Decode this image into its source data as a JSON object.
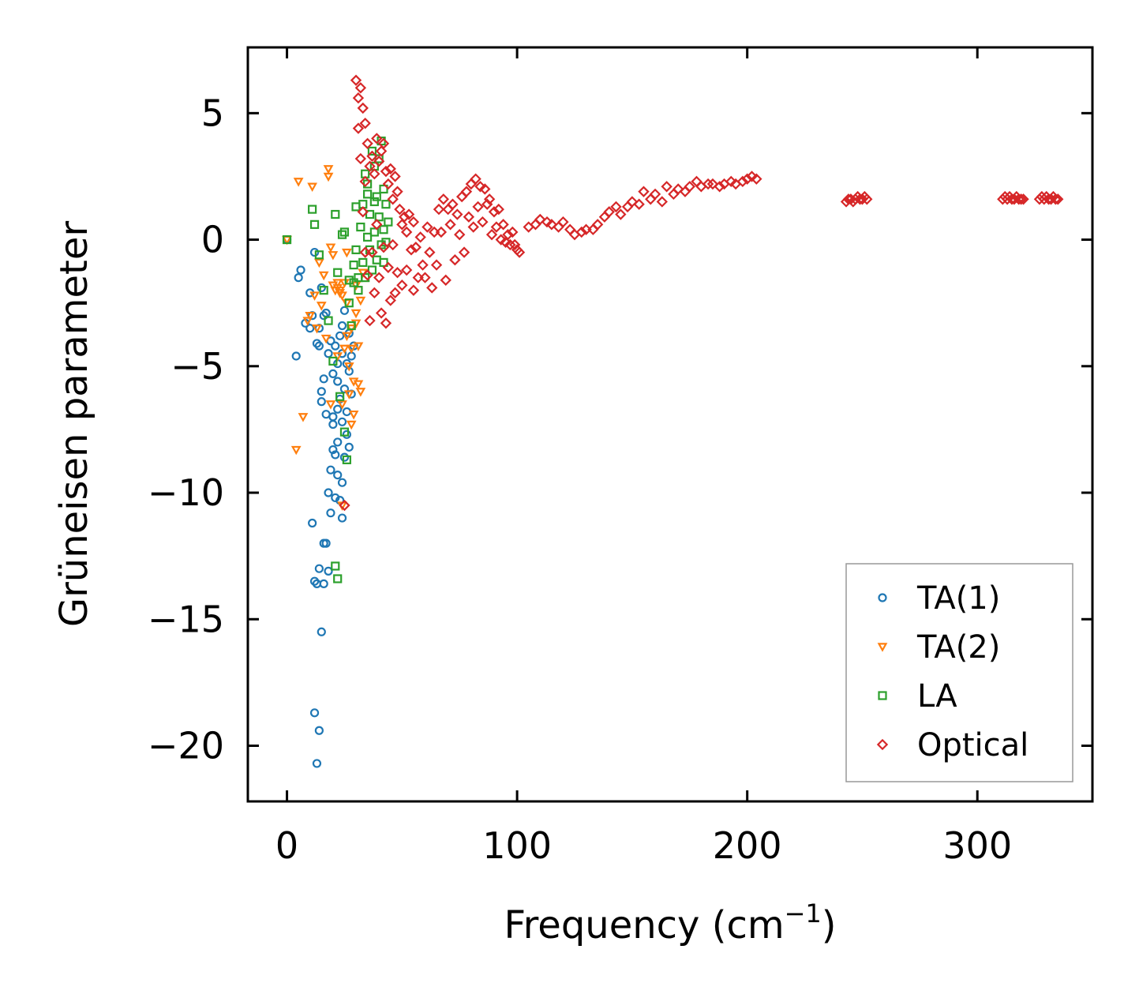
{
  "chart_data": {
    "type": "scatter",
    "title": "",
    "xlabel": "Frequency (cm",
    "xlabel_sup": "−1",
    "xlabel_close": ")",
    "ylabel": "Grüneisen parameter",
    "xlim": [
      -17,
      350
    ],
    "ylim": [
      -22.2,
      7.6
    ],
    "xticks": [
      0,
      100,
      200,
      300
    ],
    "xtick_labels": [
      "0",
      "100",
      "200",
      "300"
    ],
    "yticks": [
      5,
      0,
      -5,
      -10,
      -15,
      -20
    ],
    "ytick_labels": [
      "5",
      "0",
      "−5",
      "−10",
      "−15",
      "−20"
    ],
    "legend_position": "lower-right",
    "series": [
      {
        "name": "TA(1)",
        "color": "#1f77b4",
        "marker": "circle",
        "x": [
          0,
          4,
          5,
          6,
          8,
          10,
          10,
          11,
          11,
          12,
          12,
          13,
          13,
          13,
          14,
          14,
          14,
          15,
          15,
          15,
          16,
          16,
          16,
          17,
          17,
          17,
          18,
          18,
          18,
          19,
          19,
          19,
          20,
          20,
          20,
          21,
          21,
          21,
          22,
          22,
          22,
          23,
          23,
          23,
          24,
          24,
          24,
          25,
          25,
          25,
          26,
          26,
          26,
          27,
          27,
          27,
          28,
          28,
          29,
          12,
          14,
          15,
          16,
          20,
          22,
          24,
          24,
          22
        ],
        "y": [
          0,
          -4.6,
          -1.5,
          -1.2,
          -3.3,
          -2.1,
          -3.5,
          -3.0,
          -11.2,
          -18.7,
          -0.5,
          -13.6,
          -20.7,
          -4.1,
          -3.5,
          -19.4,
          -13.0,
          -6.4,
          -1.9,
          -15.5,
          -13.6,
          -12.0,
          -3.0,
          -2.9,
          -12.0,
          -6.9,
          -4.5,
          -13.1,
          -10.0,
          -9.1,
          -4.0,
          -10.8,
          -5.3,
          -8.3,
          -7.0,
          -4.2,
          -8.5,
          -10.2,
          -5.6,
          -8.0,
          -9.3,
          -3.8,
          -6.3,
          -10.3,
          -4.5,
          -7.2,
          -11.0,
          -5.9,
          -8.6,
          -2.8,
          -4.9,
          -7.7,
          -6.8,
          -5.2,
          -8.2,
          -3.7,
          -4.6,
          -6.1,
          -4.2,
          -13.5,
          -4.2,
          -6.0,
          -5.5,
          -7.3,
          -6.7,
          -9.6,
          -3.4,
          -4.9
        ]
      },
      {
        "name": "TA(2)",
        "color": "#ff7f0e",
        "marker": "triangle-down",
        "x": [
          0,
          4,
          5,
          7,
          9,
          10,
          11,
          12,
          13,
          14,
          15,
          16,
          17,
          18,
          18,
          19,
          20,
          20,
          21,
          22,
          22,
          23,
          23,
          24,
          24,
          25,
          25,
          26,
          26,
          27,
          27,
          28,
          28,
          29,
          29,
          30,
          30,
          31,
          31,
          32,
          32,
          33,
          26,
          28,
          30,
          24,
          22,
          19
        ],
        "y": [
          0,
          -8.3,
          2.3,
          -7.0,
          -3.2,
          -3.0,
          2.1,
          -2.2,
          -3.5,
          -0.9,
          -2.6,
          -1.4,
          -3.9,
          2.5,
          2.8,
          -6.5,
          -0.6,
          -1.8,
          -2.0,
          -4.6,
          -1.9,
          -2.1,
          -2.0,
          -6.5,
          -10.5,
          -1.7,
          -4.3,
          -2.5,
          -3.8,
          -5.0,
          -6.1,
          -4.3,
          -7.3,
          -5.6,
          -6.9,
          -3.3,
          -1.8,
          -5.7,
          -4.2,
          -6.0,
          -2.4,
          -1.3,
          -0.5,
          -3.5,
          -2.9,
          -2.2,
          -1.7,
          -0.3
        ]
      },
      {
        "name": "LA",
        "color": "#2ca02c",
        "marker": "square",
        "x": [
          0,
          11,
          12,
          14,
          16,
          18,
          20,
          21,
          22,
          23,
          24,
          25,
          26,
          27,
          28,
          29,
          30,
          30,
          31,
          32,
          33,
          33,
          34,
          34,
          35,
          35,
          36,
          36,
          37,
          37,
          38,
          38,
          39,
          39,
          40,
          40,
          41,
          41,
          42,
          42,
          43,
          43,
          44,
          21,
          22,
          25,
          27,
          29,
          31,
          35,
          38,
          42
        ],
        "y": [
          0,
          1.2,
          0.6,
          -0.6,
          -2.0,
          -3.2,
          -4.8,
          -12.9,
          -13.4,
          -6.2,
          0.2,
          -7.6,
          -8.7,
          -1.6,
          -3.4,
          -1.0,
          1.3,
          -0.4,
          -2.0,
          0.5,
          1.4,
          -0.9,
          2.6,
          -1.5,
          2.2,
          0.1,
          1.0,
          -0.4,
          3.5,
          -1.2,
          2.9,
          0.3,
          1.7,
          -0.8,
          3.2,
          0.9,
          3.9,
          -0.2,
          2.0,
          -0.9,
          1.4,
          -0.1,
          0.7,
          1.0,
          -1.3,
          0.3,
          -2.5,
          -1.7,
          -1.5,
          1.8,
          1.5,
          0.4
        ]
      },
      {
        "name": "Optical",
        "color": "#d62728",
        "marker": "diamond",
        "x": [
          25,
          30,
          31,
          31,
          32,
          32,
          33,
          33,
          34,
          34,
          34,
          35,
          35,
          36,
          36,
          37,
          37,
          38,
          38,
          39,
          39,
          40,
          40,
          41,
          41,
          42,
          42,
          43,
          43,
          44,
          44,
          45,
          45,
          46,
          46,
          47,
          47,
          48,
          48,
          49,
          50,
          50,
          51,
          52,
          52,
          53,
          54,
          55,
          55,
          56,
          57,
          58,
          59,
          60,
          61,
          62,
          63,
          64,
          65,
          66,
          67,
          68,
          69,
          70,
          71,
          72,
          73,
          74,
          75,
          76,
          77,
          78,
          79,
          80,
          81,
          82,
          83,
          84,
          85,
          86,
          87,
          88,
          89,
          90,
          91,
          92,
          93,
          94,
          95,
          96,
          97,
          98,
          99,
          100,
          101,
          105,
          108,
          110,
          113,
          115,
          118,
          120,
          123,
          125,
          128,
          130,
          133,
          135,
          138,
          140,
          143,
          145,
          148,
          150,
          153,
          155,
          158,
          160,
          163,
          165,
          168,
          170,
          173,
          175,
          178,
          180,
          183,
          185,
          188,
          190,
          193,
          195,
          198,
          200,
          202,
          204,
          243,
          244,
          245,
          246,
          247,
          248,
          249,
          250,
          251,
          252,
          311,
          312,
          313,
          314,
          315,
          316,
          317,
          318,
          319,
          320,
          327,
          328,
          329,
          330,
          331,
          332,
          333,
          334,
          335
        ],
        "y": [
          -10.5,
          6.3,
          5.6,
          4.4,
          6.0,
          3.2,
          5.2,
          1.1,
          4.6,
          -0.5,
          2.3,
          3.8,
          -1.4,
          2.9,
          -3.2,
          3.3,
          -0.5,
          2.6,
          -2.1,
          4.0,
          0.6,
          3.1,
          -1.5,
          3.5,
          -2.9,
          3.8,
          -0.3,
          2.7,
          -3.3,
          2.2,
          -1.1,
          2.8,
          -2.4,
          1.6,
          -0.2,
          2.5,
          -2.1,
          1.9,
          -1.3,
          1.2,
          0.6,
          -1.8,
          0.9,
          0.3,
          -1.2,
          1.0,
          -0.4,
          0.7,
          -2.0,
          -0.3,
          -1.5,
          0.1,
          -1.0,
          -1.5,
          0.5,
          -0.5,
          -1.9,
          0.3,
          -1.0,
          1.2,
          0.3,
          1.6,
          -1.6,
          1.2,
          0.6,
          1.4,
          -0.8,
          1.0,
          0.2,
          1.7,
          -0.5,
          1.9,
          0.9,
          2.2,
          0.5,
          2.4,
          1.3,
          2.1,
          0.7,
          2.0,
          1.4,
          1.6,
          0.2,
          1.1,
          0.5,
          1.2,
          0.0,
          0.6,
          -0.1,
          0.2,
          -0.2,
          0.3,
          -0.2,
          -0.4,
          -0.5,
          0.5,
          0.6,
          0.8,
          0.7,
          0.6,
          0.5,
          0.7,
          0.4,
          0.2,
          0.3,
          0.4,
          0.4,
          0.6,
          0.9,
          1.1,
          1.3,
          1.0,
          1.3,
          1.5,
          1.4,
          1.9,
          1.6,
          1.8,
          1.5,
          2.1,
          1.8,
          2.0,
          1.9,
          2.1,
          2.3,
          2.1,
          2.2,
          2.2,
          2.1,
          2.2,
          2.3,
          2.2,
          2.3,
          2.4,
          2.5,
          2.4,
          1.5,
          1.6,
          1.6,
          1.5,
          1.6,
          1.7,
          1.6,
          1.6,
          1.7,
          1.6,
          1.6,
          1.7,
          1.6,
          1.7,
          1.6,
          1.6,
          1.7,
          1.6,
          1.6,
          1.6,
          1.6,
          1.7,
          1.6,
          1.7,
          1.6,
          1.6,
          1.7,
          1.6,
          1.6
        ]
      }
    ]
  }
}
